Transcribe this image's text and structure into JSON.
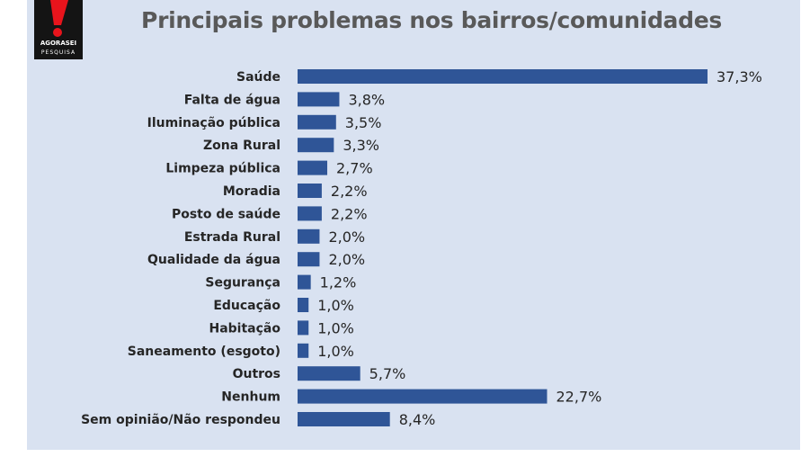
{
  "brand": {
    "logo_name": "AGORASEI",
    "logo_sub": "PESQUISA",
    "accent": "#e8141c",
    "dark": "#141414"
  },
  "colors": {
    "panel": "#d9e2f1",
    "bar": "#2f5597",
    "text": "#262626",
    "title": "#595959"
  },
  "chart_data": {
    "type": "bar",
    "orientation": "horizontal",
    "title": "Principais problemas nos bairros/comunidades",
    "categories": [
      "Saúde",
      "Falta de água",
      "Iluminação pública",
      "Zona Rural",
      "Limpeza pública",
      "Moradia",
      "Posto de saúde",
      "Estrada Rural",
      "Qualidade da água",
      "Segurança",
      "Educação",
      "Habitação",
      "Saneamento (esgoto)",
      "Outros",
      "Nenhum",
      "Sem opinião/Não respondeu"
    ],
    "values": [
      37.3,
      3.8,
      3.5,
      3.3,
      2.7,
      2.2,
      2.2,
      2.0,
      2.0,
      1.2,
      1.0,
      1.0,
      1.0,
      5.7,
      22.7,
      8.4
    ],
    "labels": [
      "37,3%",
      "3,8%",
      "3,5%",
      "3,3%",
      "2,7%",
      "2,2%",
      "2,2%",
      "2,0%",
      "2,0%",
      "1,2%",
      "1,0%",
      "1,0%",
      "1,0%",
      "5,7%",
      "22,7%",
      "8,4%"
    ],
    "xlim": [
      0,
      40
    ],
    "grid": false,
    "legend": "none"
  }
}
